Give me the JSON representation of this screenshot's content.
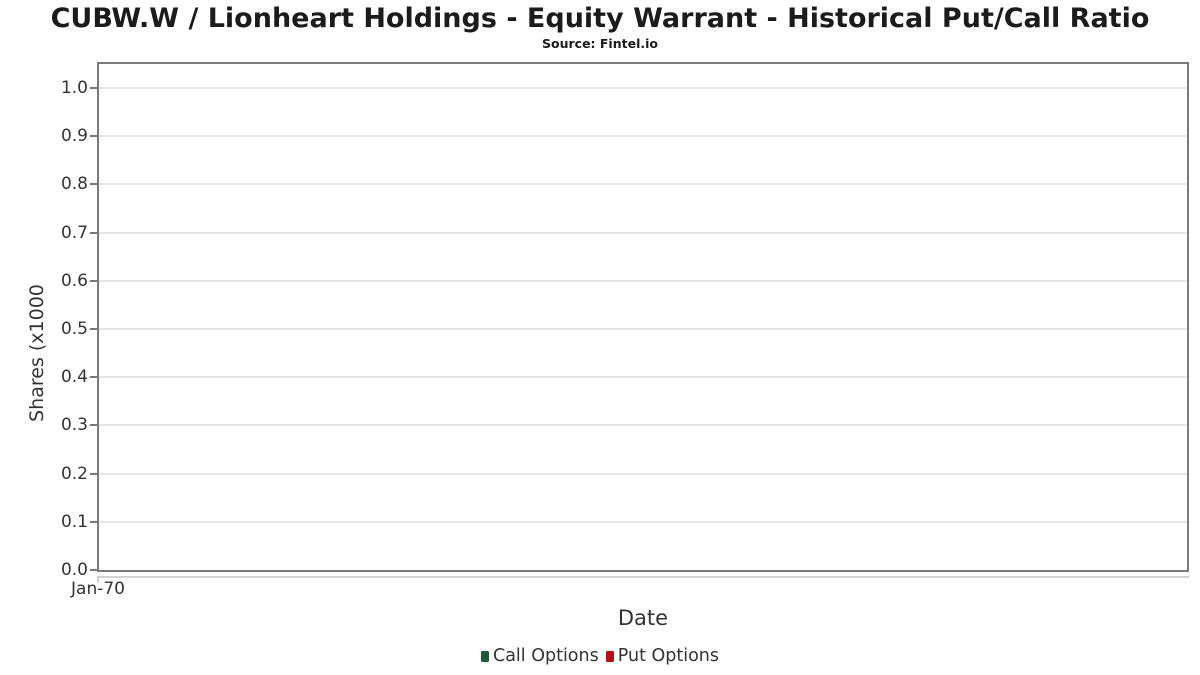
{
  "chart": {
    "title": "CUBW.W / Lionheart Holdings - Equity Warrant - Historical Put/Call Ratio",
    "subtitle": "Source: Fintel.io"
  },
  "chart_data": {
    "type": "line",
    "title": "CUBW.W / Lionheart Holdings - Equity Warrant - Historical Put/Call Ratio",
    "subtitle": "Source: Fintel.io",
    "xlabel": "Date",
    "ylabel": "Shares (x1000",
    "x_ticks": [
      "Jan-70"
    ],
    "y_ticks": [
      "0.0",
      "0.1",
      "0.2",
      "0.3",
      "0.4",
      "0.5",
      "0.6",
      "0.7",
      "0.8",
      "0.9",
      "1.0"
    ],
    "ylim": [
      0,
      1.05
    ],
    "grid": true,
    "legend_position": "bottom",
    "series": [
      {
        "name": "Call Options",
        "color": "#1e5c38",
        "values": []
      },
      {
        "name": "Put Options",
        "color": "#b01114",
        "values": []
      }
    ],
    "colors": {
      "plot_border": "#7b7b7b",
      "gridline": "#e6e6e6",
      "x_axis_line": "#d2d2d2",
      "text": "#333333",
      "title_text": "#1b1b1b"
    }
  }
}
